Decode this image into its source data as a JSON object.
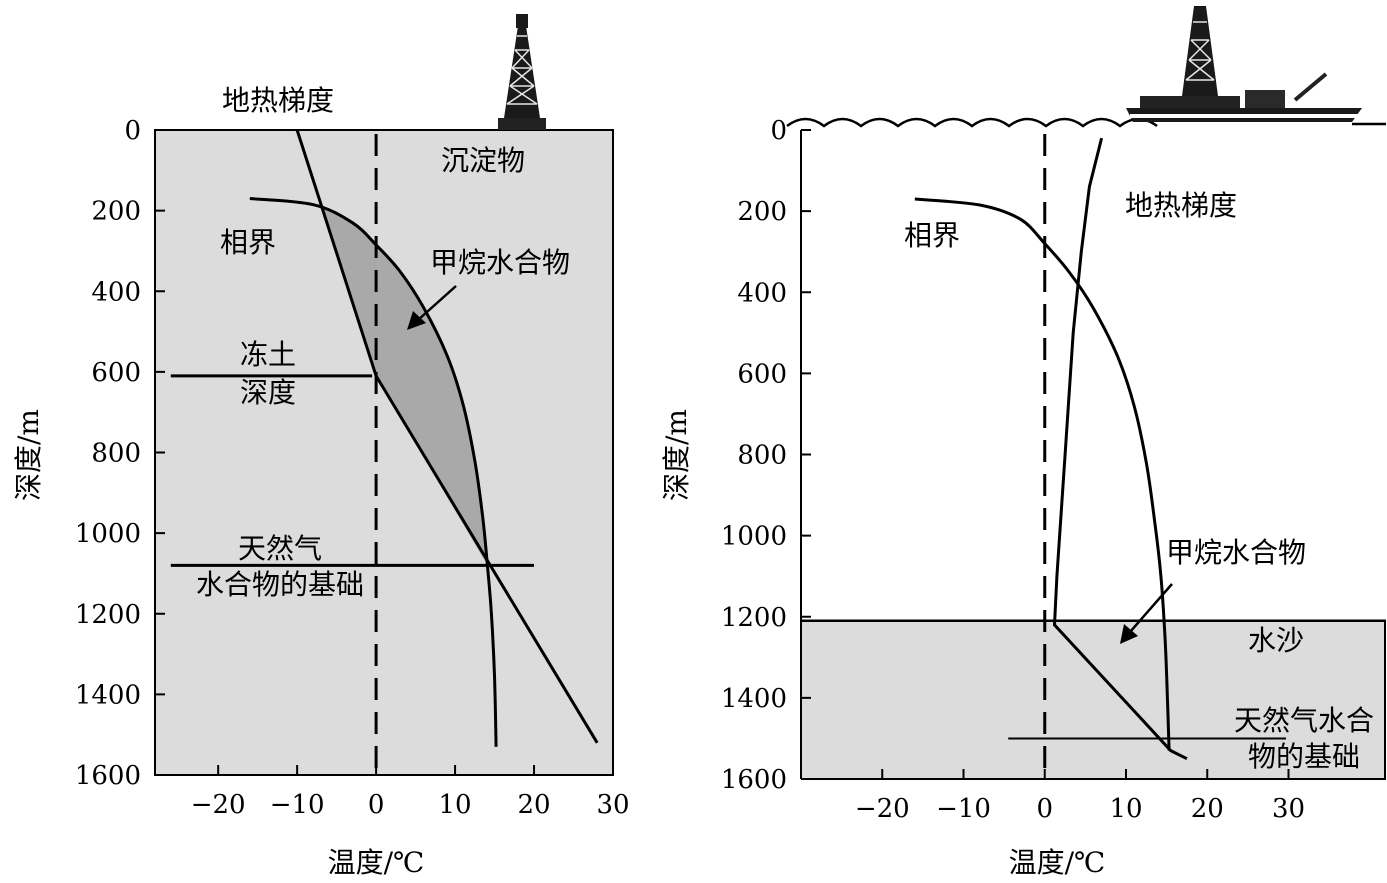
{
  "chart_data": [
    {
      "type": "line",
      "setting": "permafrost",
      "xlabel": "温度/℃",
      "ylabel": "深度/m",
      "xlim": [
        -28,
        30
      ],
      "ylim": [
        0,
        1600
      ],
      "y_inverted": true,
      "x_ticks": [
        "−20",
        "−10",
        "0",
        "10",
        "20",
        "30"
      ],
      "x_tick_values": [
        -20,
        -10,
        0,
        10,
        20,
        30
      ],
      "y_ticks": [
        "0",
        "200",
        "400",
        "600",
        "800",
        "1000",
        "1200",
        "1400",
        "1600"
      ],
      "y_tick_values": [
        0,
        200,
        400,
        600,
        800,
        1000,
        1200,
        1400,
        1600
      ],
      "colors": {
        "background": "#dcdcdc",
        "hydrate_zone": "#a9a9a9",
        "line": "#000000"
      },
      "series": [
        {
          "name": "地热梯度",
          "points": [
            [
              -10,
              0
            ],
            [
              0,
              610
            ],
            [
              28,
              1520
            ]
          ]
        },
        {
          "name": "相界",
          "points": [
            [
              -16,
              170
            ],
            [
              -8,
              185
            ],
            [
              -3,
              230
            ],
            [
              0,
              285
            ],
            [
              3,
              350
            ],
            [
              6,
              440
            ],
            [
              9,
              560
            ],
            [
              11,
              680
            ],
            [
              12.5,
              820
            ],
            [
              13.5,
              960
            ],
            [
              14.1,
              1080
            ],
            [
              14.6,
              1200
            ],
            [
              15,
              1360
            ],
            [
              15.2,
              1530
            ]
          ]
        }
      ],
      "reference_lines": [
        {
          "label_lines": [
            "冻土",
            "深度"
          ],
          "y": 610,
          "x_range": [
            -26,
            -0.5
          ]
        },
        {
          "label_lines": [
            "天然气",
            "水合物的基础"
          ],
          "y": 1080,
          "x_range": [
            -26,
            20
          ]
        }
      ],
      "dashed_line_x": 0,
      "annotations": {
        "gradient_label": "地热梯度",
        "phase_label": "相界",
        "sediment_label": "沉淀物",
        "hydrate_label": "甲烷水合物"
      }
    },
    {
      "type": "line",
      "setting": "marine",
      "xlabel": "温度/℃",
      "ylabel": "深度/m",
      "xlim": [
        -30,
        42
      ],
      "ylim": [
        0,
        1600
      ],
      "y_inverted": true,
      "x_ticks": [
        "−20",
        "−10",
        "0",
        "10",
        "20",
        "30"
      ],
      "x_tick_values": [
        -20,
        -10,
        0,
        10,
        20,
        30
      ],
      "y_ticks": [
        "0",
        "200",
        "400",
        "600",
        "800",
        "1000",
        "1200",
        "1400",
        "1600"
      ],
      "y_tick_values": [
        0,
        200,
        400,
        600,
        800,
        1000,
        1200,
        1400,
        1600
      ],
      "seafloor_depth": 1210,
      "colors": {
        "water": "#ffffff",
        "sediment": "#dcdcdc",
        "line": "#000000"
      },
      "series": [
        {
          "name": "地热梯度",
          "points": [
            [
              7,
              20
            ],
            [
              5.5,
              140
            ],
            [
              4.5,
              300
            ],
            [
              3.5,
              500
            ],
            [
              2.5,
              800
            ],
            [
              1.5,
              1100
            ],
            [
              1.2,
              1220
            ],
            [
              15.5,
              1530
            ],
            [
              17.5,
              1550
            ]
          ]
        },
        {
          "name": "相界",
          "points": [
            [
              -16,
              170
            ],
            [
              -8,
              185
            ],
            [
              -3,
              220
            ],
            [
              0,
              280
            ],
            [
              3,
              350
            ],
            [
              6,
              440
            ],
            [
              9,
              560
            ],
            [
              11,
              680
            ],
            [
              12.5,
              820
            ],
            [
              13.5,
              960
            ],
            [
              14.3,
              1100
            ],
            [
              14.8,
              1250
            ],
            [
              15.1,
              1400
            ],
            [
              15.3,
              1530
            ]
          ]
        }
      ],
      "reference_lines": [
        {
          "label_lines": [
            "天然气水合",
            "物的基础"
          ],
          "y": 1500,
          "x_range": [
            -4.5,
            42
          ]
        }
      ],
      "dashed_line_x": 0,
      "annotations": {
        "gradient_label": "地热梯度",
        "phase_label": "相界",
        "sediment_label": "水沙",
        "hydrate_label": "甲烷水合物"
      }
    }
  ]
}
